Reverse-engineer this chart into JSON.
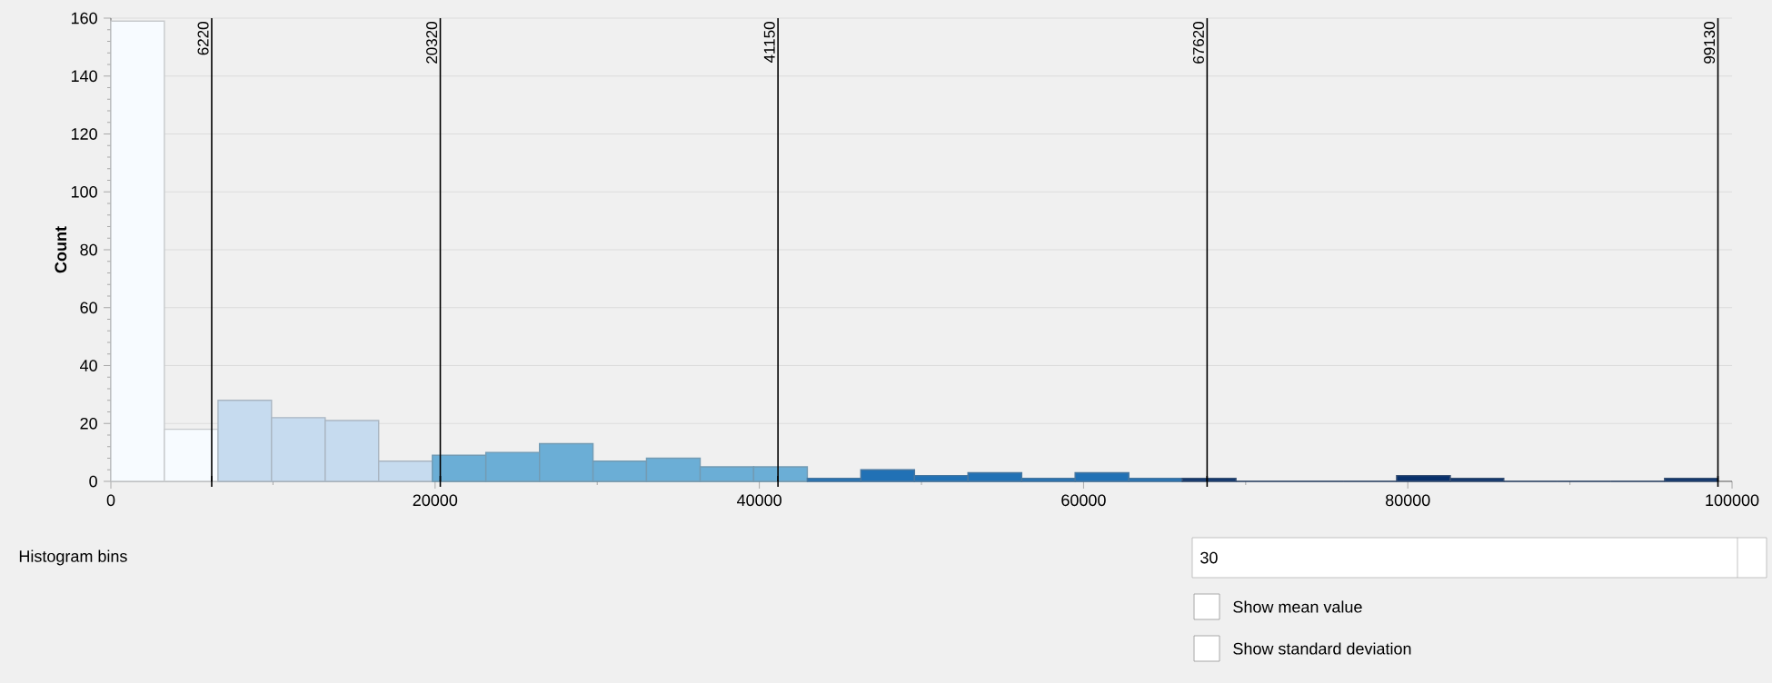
{
  "chart_data": {
    "type": "histogram",
    "ylabel": "Count",
    "bins": [
      0,
      3300,
      6610,
      9910,
      13220,
      16520,
      19830,
      23130,
      26440,
      29740,
      33040,
      36350,
      39650,
      42960,
      46260,
      49570,
      52870,
      56180,
      59480,
      62790,
      66090,
      69400,
      72700,
      76010,
      79310,
      82620,
      85920,
      89230,
      92530,
      95840,
      99130
    ],
    "values": [
      159,
      18,
      28,
      22,
      21,
      7,
      9,
      10,
      13,
      7,
      8,
      5,
      5,
      1,
      4,
      2,
      3,
      1,
      3,
      1,
      1,
      0,
      0,
      0,
      2,
      1,
      0,
      0,
      0,
      1
    ],
    "colors": [
      "#f7fbff",
      "#f7fbff",
      "#c6dbef",
      "#c6dbef",
      "#c6dbef",
      "#c6dbef",
      "#6baed6",
      "#6baed6",
      "#6baed6",
      "#6baed6",
      "#6baed6",
      "#6baed6",
      "#6baed6",
      "#2171b5",
      "#2171b5",
      "#2171b5",
      "#2171b5",
      "#2171b5",
      "#2171b5",
      "#2171b5",
      "#08306b",
      "#08306b",
      "#08306b",
      "#08306b",
      "#08306b",
      "#08306b",
      "#08306b",
      "#08306b",
      "#08306b",
      "#08306b"
    ],
    "xlim": [
      0,
      100000
    ],
    "ylim": [
      0,
      160
    ],
    "xticks": [
      0,
      20000,
      40000,
      60000,
      80000,
      100000
    ],
    "yticks": [
      0,
      20,
      40,
      60,
      80,
      100,
      120,
      140,
      160
    ],
    "grid": "y",
    "ref_lines": [
      {
        "axis": "x",
        "value": 6220,
        "label": "6220",
        "color": "#000000"
      },
      {
        "axis": "x",
        "value": 20320,
        "label": "20320",
        "color": "#000000"
      },
      {
        "axis": "x",
        "value": 41150,
        "label": "41150",
        "color": "#000000"
      },
      {
        "axis": "x",
        "value": 67620,
        "label": "67620",
        "color": "#000000"
      },
      {
        "axis": "x",
        "value": 99130,
        "label": "99130",
        "color": "#000000"
      }
    ],
    "annotations": [
      "Histogram bins",
      "30",
      "Show mean value",
      "Show standard deviation"
    ]
  }
}
